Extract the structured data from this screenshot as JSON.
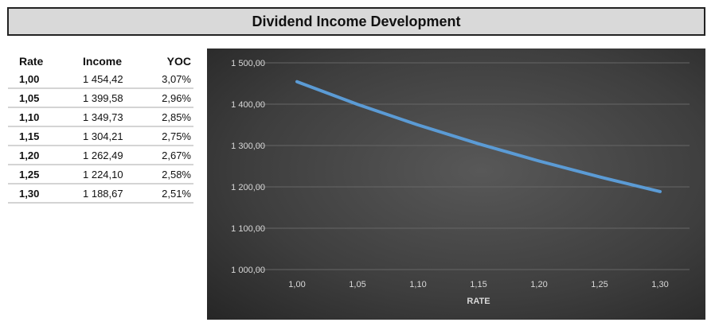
{
  "title": "Dividend Income Development",
  "table": {
    "headers": [
      "Rate",
      "Income",
      "YOC"
    ],
    "rows": [
      [
        "1,00",
        "1 454,42",
        "3,07%"
      ],
      [
        "1,05",
        "1 399,58",
        "2,96%"
      ],
      [
        "1,10",
        "1 349,73",
        "2,85%"
      ],
      [
        "1,15",
        "1 304,21",
        "2,75%"
      ],
      [
        "1,20",
        "1 262,49",
        "2,67%"
      ],
      [
        "1,25",
        "1 224,10",
        "2,58%"
      ],
      [
        "1,30",
        "1 188,67",
        "2,51%"
      ]
    ]
  },
  "chart_data": {
    "type": "line",
    "title": "",
    "xlabel": "RATE",
    "ylabel": "",
    "categories": [
      "1,00",
      "1,05",
      "1,10",
      "1,15",
      "1,20",
      "1,25",
      "1,30"
    ],
    "series": [
      {
        "name": "Income",
        "values": [
          1454.42,
          1399.58,
          1349.73,
          1304.21,
          1262.49,
          1224.1,
          1188.67
        ],
        "color": "#5b9bd5"
      }
    ],
    "ylim": [
      1000,
      1500
    ],
    "yticks": [
      1000,
      1100,
      1200,
      1300,
      1400,
      1500
    ],
    "ytick_labels": [
      "1 000,00",
      "1 100,00",
      "1 200,00",
      "1 300,00",
      "1 400,00",
      "1 500,00"
    ],
    "grid": true,
    "legend": "none"
  }
}
